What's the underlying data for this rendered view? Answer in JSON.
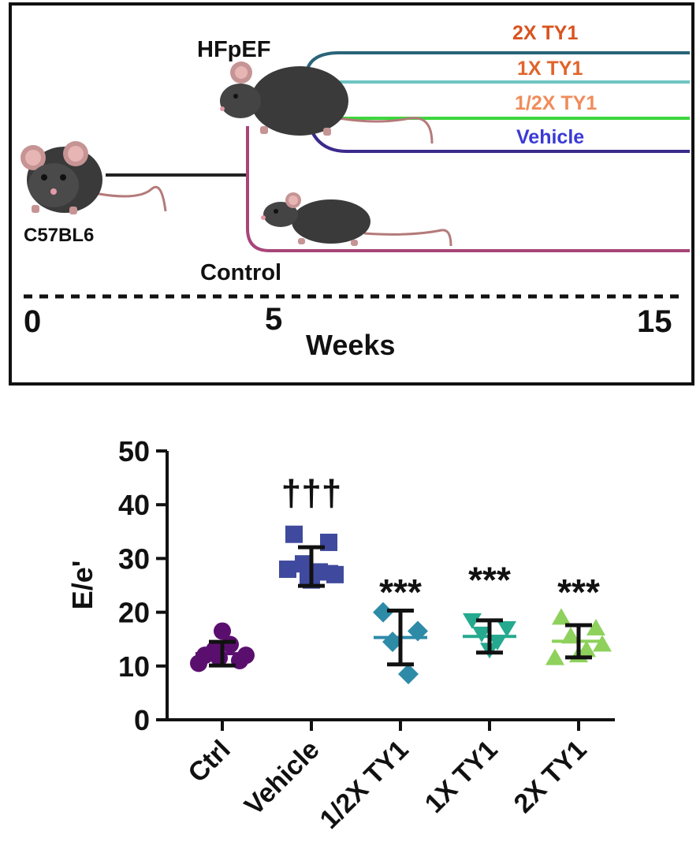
{
  "schematic": {
    "strain_label": "C57BL6",
    "hfpef_label": "HFpEF",
    "control_label": "Control",
    "timeline": {
      "start": "0",
      "mid": "5",
      "end": "15",
      "unit_label": "Weeks"
    },
    "groups": [
      {
        "label": "2X TY1",
        "text_color": "#d9531e",
        "line_color": "#2a6478"
      },
      {
        "label": "1X TY1",
        "text_color": "#e0642a",
        "line_color": "#6ec4c4"
      },
      {
        "label": "1/2X TY1",
        "text_color": "#f08c5a",
        "line_color": "#3cd63c"
      },
      {
        "label": "Vehicle",
        "text_color": "#3a3ad6",
        "line_color": "#3c2a8c"
      }
    ],
    "control_line_color": "#a8457a",
    "baseline_line_color": "#222222"
  },
  "chart_data": {
    "type": "scatter",
    "title": "",
    "xlabel": "",
    "ylabel": "E/e'",
    "ylim": [
      0,
      50
    ],
    "yticks": [
      0,
      10,
      20,
      30,
      40,
      50
    ],
    "categories": [
      "Ctrl",
      "Vehicle",
      "1/2X TY1",
      "1X TY1",
      "2X TY1"
    ],
    "series": [
      {
        "name": "Ctrl",
        "marker": "circle",
        "color": "#5a0f6e",
        "line_color": "#5a0f6e",
        "mean": 12.3,
        "sd": 2.2,
        "points": [
          12,
          11,
          13,
          14,
          16.5,
          10.5,
          12,
          11.5
        ]
      },
      {
        "name": "Vehicle",
        "marker": "square",
        "color": "#3f4a9e",
        "line_color": "#3f4a9e",
        "mean": 28.5,
        "sd": 3.6,
        "points": [
          34.5,
          33,
          29,
          27.5,
          26,
          28,
          27,
          26.5
        ]
      },
      {
        "name": "1/2X TY1",
        "marker": "diamond",
        "color": "#2e8ba8",
        "line_color": "#2e8ba8",
        "mean": 15.3,
        "sd": 5.0,
        "points": [
          20,
          16.5,
          14.5,
          8.5
        ]
      },
      {
        "name": "1X TY1",
        "marker": "triangle-down",
        "color": "#25a98f",
        "line_color": "#25a98f",
        "mean": 15.5,
        "sd": 3.0,
        "points": [
          18.5,
          17,
          16,
          14.5,
          13
        ]
      },
      {
        "name": "2X TY1",
        "marker": "triangle-up",
        "color": "#8ed15c",
        "line_color": "#8ed15c",
        "mean": 14.6,
        "sd": 3.0,
        "points": [
          19,
          17,
          15.5,
          13,
          12,
          11.5,
          14
        ]
      }
    ],
    "annotations": [
      {
        "category": "Vehicle",
        "text": "†††",
        "y": 44
      },
      {
        "category": "1/2X TY1",
        "text": "***",
        "y": 25.5
      },
      {
        "category": "1X TY1",
        "text": "***",
        "y": 27.8
      },
      {
        "category": "2X TY1",
        "text": "***",
        "y": 25.5
      }
    ]
  }
}
